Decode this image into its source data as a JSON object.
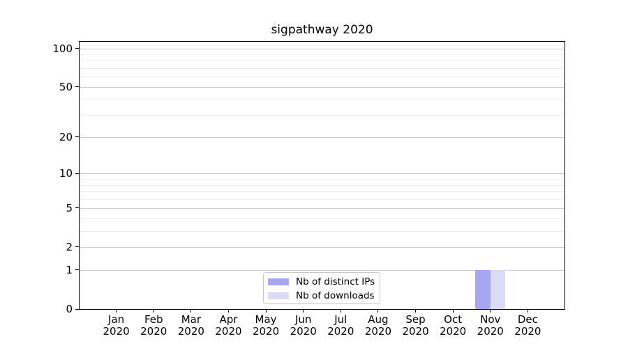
{
  "chart_data": {
    "type": "bar",
    "title": "sigpathway 2020",
    "categories": [
      {
        "month": "Jan",
        "year": "2020"
      },
      {
        "month": "Feb",
        "year": "2020"
      },
      {
        "month": "Mar",
        "year": "2020"
      },
      {
        "month": "Apr",
        "year": "2020"
      },
      {
        "month": "May",
        "year": "2020"
      },
      {
        "month": "Jun",
        "year": "2020"
      },
      {
        "month": "Jul",
        "year": "2020"
      },
      {
        "month": "Aug",
        "year": "2020"
      },
      {
        "month": "Sep",
        "year": "2020"
      },
      {
        "month": "Oct",
        "year": "2020"
      },
      {
        "month": "Nov",
        "year": "2020"
      },
      {
        "month": "Dec",
        "year": "2020"
      }
    ],
    "series": [
      {
        "name": "Nb of distinct IPs",
        "color": "#a7a7f1",
        "values": [
          0,
          0,
          0,
          0,
          0,
          0,
          0,
          0,
          0,
          0,
          1,
          0
        ]
      },
      {
        "name": "Nb of downloads",
        "color": "#dbdbf8",
        "values": [
          0,
          0,
          0,
          0,
          0,
          0,
          0,
          0,
          0,
          0,
          1,
          0
        ]
      }
    ],
    "yscale": "log1p",
    "ylim": [
      0,
      114
    ],
    "y_major_ticks": [
      0,
      1,
      2,
      5,
      10,
      20,
      50,
      100
    ],
    "y_minor_ticks": [
      3,
      4,
      6,
      7,
      8,
      9,
      30,
      40,
      60,
      70,
      80,
      90
    ],
    "grid": {
      "axis": "y",
      "major_color": "#cccccc",
      "minor_color": "#ececec"
    },
    "legend_position": "lower center",
    "colors": {
      "spine": "#000000",
      "text": "#000000",
      "background": "#ffffff"
    }
  }
}
